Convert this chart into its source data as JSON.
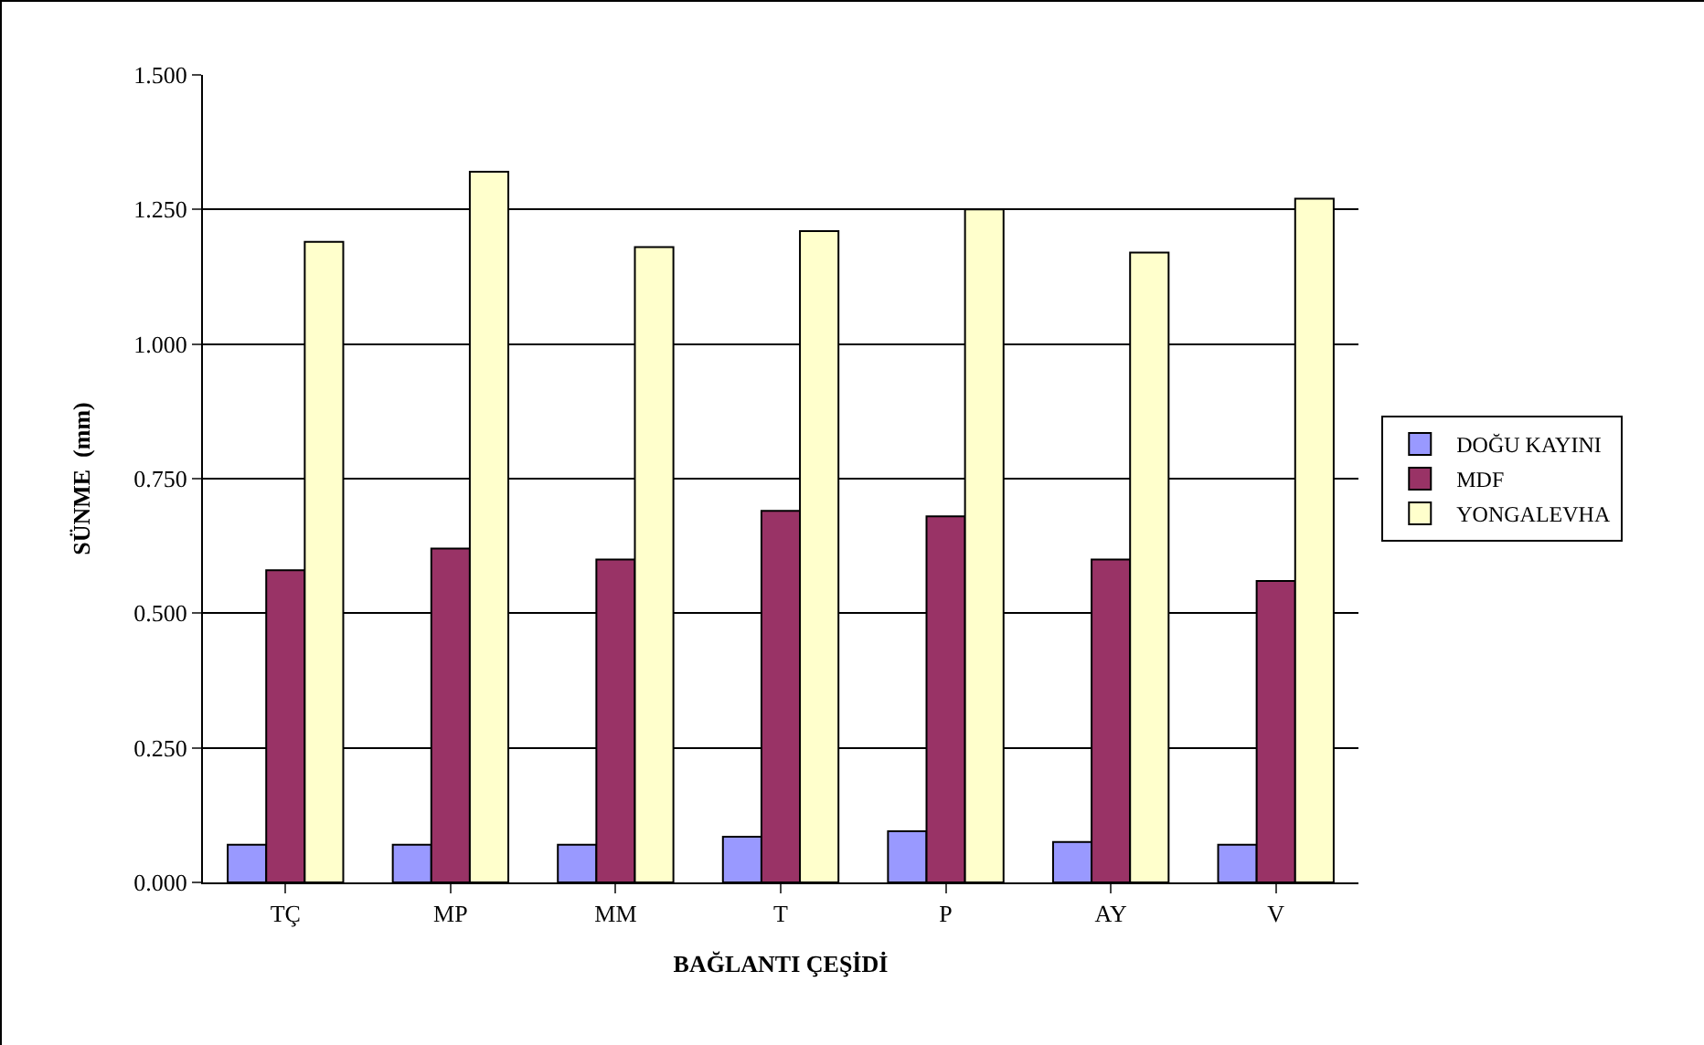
{
  "chart_data": {
    "type": "bar",
    "xlabel": "BAĞLANTI ÇEŞİDİ",
    "ylabel": "SÜNME  (mm)",
    "categories": [
      "TÇ",
      "MP",
      "MM",
      "T",
      "P",
      "AY",
      "V"
    ],
    "series": [
      {
        "name": "DOĞU KAYINI",
        "color": "#9999ff",
        "values": [
          0.07,
          0.07,
          0.07,
          0.085,
          0.095,
          0.075,
          0.07
        ]
      },
      {
        "name": "MDF",
        "color": "#993366",
        "values": [
          0.58,
          0.62,
          0.6,
          0.69,
          0.68,
          0.6,
          0.56
        ]
      },
      {
        "name": "YONGALEVHA",
        "color": "#ffffcc",
        "values": [
          1.19,
          1.32,
          1.18,
          1.21,
          1.25,
          1.17,
          1.27
        ]
      }
    ],
    "ylim": [
      0,
      1.5
    ],
    "yticks": [
      {
        "value": 0,
        "label": "0.000"
      },
      {
        "value": 0.25,
        "label": "0.250"
      },
      {
        "value": 0.5,
        "label": "0.500"
      },
      {
        "value": 0.75,
        "label": "0.750"
      },
      {
        "value": 1,
        "label": "1.000"
      },
      {
        "value": 1.25,
        "label": "1.250"
      },
      {
        "value": 1.5,
        "label": "1.500"
      }
    ],
    "grid": "y",
    "legend": "right"
  }
}
